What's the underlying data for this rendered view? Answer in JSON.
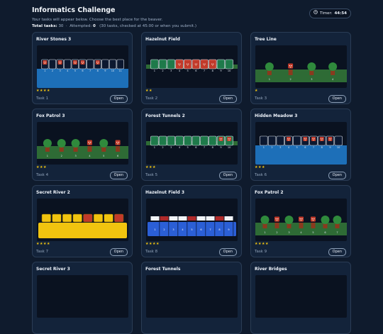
{
  "app": {
    "title": "Informatics Challenge",
    "subtitle": "Your tasks will appear below. Choose the best place for the beaver.",
    "timer_label": "Timer:",
    "timer_value": "44:54"
  },
  "stats": {
    "total_label": "Total tasks:",
    "total_value": "30",
    "attempted_label": "Attempted:",
    "attempted_value": "0",
    "note": "(30 tasks, checked at 45:00 or when you submit.)"
  },
  "open_label": "Open",
  "tasks": [
    {
      "title": "River Stones 3",
      "stars": "★★★★",
      "label": "Task 1",
      "scene": "river",
      "cells": 11,
      "beavers": [
        1,
        3,
        5,
        6,
        8
      ]
    },
    {
      "title": "Hazelnut Field",
      "stars": "★★",
      "label": "Task 2",
      "scene": "field",
      "cells": 10,
      "beavers": [
        4,
        5,
        6,
        7,
        8
      ]
    },
    {
      "title": "Tree Line",
      "stars": "★",
      "label": "Task 3",
      "scene": "trees",
      "cells": 4,
      "beavers": [
        2
      ]
    },
    {
      "title": "Fox Patrol 3",
      "stars": "★★★",
      "label": "Task 4",
      "scene": "trees",
      "cells": 6,
      "beavers": [
        4,
        6
      ]
    },
    {
      "title": "Forest Tunnels 2",
      "stars": "★★★",
      "label": "Task 5",
      "scene": "tunnel",
      "cells": 10,
      "beavers": [
        9,
        10
      ]
    },
    {
      "title": "Hidden Meadow 3",
      "stars": "★★★",
      "label": "Task 6",
      "scene": "river",
      "cells": 10,
      "beavers": [
        4,
        6,
        7,
        8,
        9
      ]
    },
    {
      "title": "Secret River 2",
      "stars": "★★★★",
      "label": "Task 7",
      "scene": "yellow",
      "cells": 8,
      "beavers": [
        5,
        8
      ]
    },
    {
      "title": "Hazelnut Field 3",
      "stars": "★★★★",
      "label": "Task 8",
      "scene": "piano",
      "cells": 9,
      "beavers": []
    },
    {
      "title": "Fox Patrol 2",
      "stars": "★★★★",
      "label": "Task 9",
      "scene": "trees",
      "cells": 7,
      "beavers": [
        2,
        4,
        5
      ]
    },
    {
      "title": "Secret River 3",
      "stars": "",
      "label": "",
      "scene": "none",
      "cells": 0,
      "beavers": []
    },
    {
      "title": "Forest Tunnels",
      "stars": "",
      "label": "",
      "scene": "none",
      "cells": 0,
      "beavers": []
    },
    {
      "title": "River Bridges",
      "stars": "",
      "label": "",
      "scene": "none",
      "cells": 0,
      "beavers": []
    }
  ],
  "colors": {
    "background": "#0f1b2d",
    "card": "#13233a",
    "water": "#1d6fb8",
    "grass": "#2e6b35",
    "tree": "#2f8a3c",
    "trunk": "#8a3a1e",
    "beaver": "#c23a2a",
    "yellow": "#f1c40f",
    "piano_blue": "#2b5fd6"
  }
}
